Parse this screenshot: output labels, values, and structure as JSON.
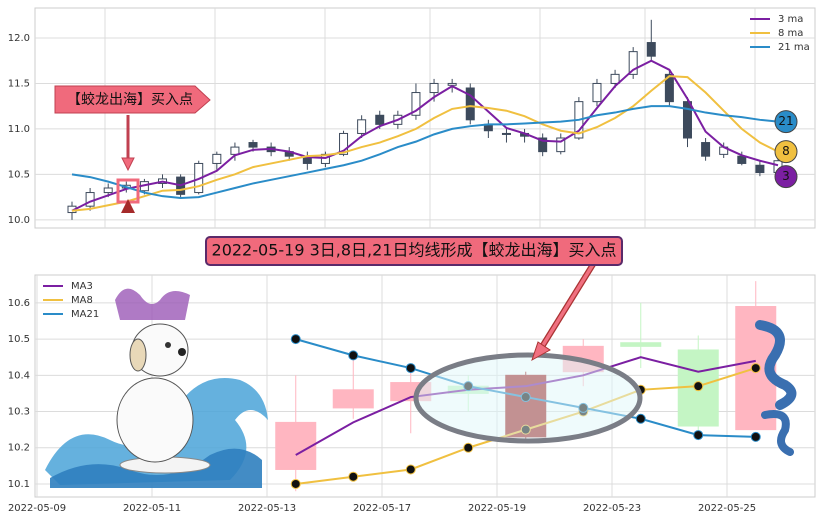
{
  "chart_data": [
    {
      "type": "candlestick",
      "ylim": [
        9.91,
        12.33
      ],
      "yticks": [
        {
          "value": 10,
          "label": "10.0"
        },
        10.5,
        {
          "value": 11,
          "label": "11.0"
        },
        11.5,
        {
          "value": 12,
          "label": "12.0"
        }
      ],
      "grid": true,
      "legend": "upper right",
      "up_color": "#ffffff",
      "down_color": "#3d4a5c",
      "annotation": "【蛟龙出海】买入点",
      "open": [
        10.08,
        10.15,
        10.3,
        10.35,
        10.32,
        10.4,
        10.47,
        10.3,
        10.62,
        10.72,
        10.85,
        10.8,
        10.75,
        10.7,
        10.62,
        10.72,
        10.95,
        11.15,
        11.05,
        11.15,
        11.4,
        11.48,
        11.45,
        11.05,
        10.95,
        10.95,
        10.9,
        10.75,
        10.9,
        11.3,
        11.5,
        11.6,
        11.95,
        11.6,
        11.3,
        10.85,
        10.72,
        10.7,
        10.6,
        10.52
      ],
      "high": [
        10.2,
        10.35,
        10.4,
        10.42,
        10.45,
        10.5,
        10.5,
        10.65,
        10.75,
        10.85,
        10.88,
        10.85,
        10.8,
        10.75,
        10.75,
        10.98,
        11.15,
        11.2,
        11.2,
        11.5,
        11.55,
        11.55,
        11.5,
        11.1,
        11.0,
        11.0,
        10.95,
        10.95,
        11.35,
        11.55,
        11.65,
        11.9,
        12.2,
        11.65,
        11.35,
        10.9,
        10.85,
        10.75,
        10.65,
        10.72
      ],
      "low": [
        10.0,
        10.1,
        10.25,
        10.3,
        10.28,
        10.35,
        10.25,
        10.28,
        10.55,
        10.65,
        10.75,
        10.7,
        10.65,
        10.55,
        10.58,
        10.7,
        10.9,
        11.0,
        11.0,
        11.1,
        11.3,
        11.4,
        11.05,
        10.9,
        10.85,
        10.85,
        10.7,
        10.72,
        10.88,
        11.25,
        11.45,
        11.55,
        11.75,
        11.25,
        10.8,
        10.65,
        10.68,
        10.6,
        10.48,
        10.5
      ],
      "close": [
        10.15,
        10.3,
        10.35,
        10.38,
        10.42,
        10.45,
        10.28,
        10.62,
        10.72,
        10.8,
        10.8,
        10.75,
        10.7,
        10.62,
        10.72,
        10.95,
        11.1,
        11.05,
        11.15,
        11.4,
        11.5,
        11.5,
        11.1,
        10.98,
        10.95,
        10.92,
        10.75,
        10.9,
        11.3,
        11.5,
        11.6,
        11.85,
        11.8,
        11.3,
        10.9,
        10.7,
        10.8,
        10.62,
        10.52,
        10.65
      ],
      "series": [
        {
          "name": "3 ma",
          "badge": "3",
          "color": "#7b1fa2",
          "values": [
            10.1,
            10.2,
            10.27,
            10.34,
            10.38,
            10.42,
            10.38,
            10.45,
            10.54,
            10.71,
            10.77,
            10.78,
            10.75,
            10.69,
            10.68,
            10.76,
            10.92,
            11.03,
            11.1,
            11.2,
            11.35,
            11.47,
            11.37,
            11.19,
            11.01,
            10.95,
            10.87,
            10.86,
            10.98,
            11.23,
            11.47,
            11.65,
            11.75,
            11.65,
            11.33,
            10.97,
            10.8,
            10.71,
            10.65,
            10.6
          ]
        },
        {
          "name": "8 ma",
          "badge": "8",
          "color": "#f0c040",
          "values": [
            10.1,
            10.12,
            10.16,
            10.2,
            10.26,
            10.32,
            10.33,
            10.37,
            10.44,
            10.5,
            10.58,
            10.62,
            10.66,
            10.7,
            10.71,
            10.74,
            10.8,
            10.85,
            10.92,
            11.0,
            11.12,
            11.22,
            11.25,
            11.23,
            11.2,
            11.14,
            11.05,
            10.98,
            10.95,
            11.02,
            11.12,
            11.25,
            11.42,
            11.58,
            11.57,
            11.4,
            11.2,
            11.0,
            10.85,
            10.75
          ]
        },
        {
          "name": "21 ma",
          "badge": "21",
          "color": "#2a8cc8",
          "values": [
            10.5,
            10.47,
            10.42,
            10.36,
            10.3,
            10.26,
            10.24,
            10.25,
            10.3,
            10.35,
            10.4,
            10.44,
            10.48,
            10.52,
            10.56,
            10.6,
            10.65,
            10.72,
            10.8,
            10.86,
            10.94,
            11.0,
            11.03,
            11.05,
            11.05,
            11.06,
            11.07,
            11.08,
            11.1,
            11.15,
            11.18,
            11.22,
            11.25,
            11.25,
            11.22,
            11.18,
            11.15,
            11.13,
            11.1,
            11.08
          ]
        }
      ]
    },
    {
      "type": "candlestick",
      "title": "2022-05-19 3日,8日,21日均线形成【蛟龙出海】买入点",
      "categories": [
        "2022-05-09",
        null,
        "2022-05-11",
        null,
        "2022-05-13",
        null,
        "2022-05-17",
        null,
        "2022-05-19",
        null,
        "2022-05-23",
        null,
        "2022-05-25",
        null
      ],
      "ylim": [
        10.064,
        10.677
      ],
      "yticks": [
        10.1,
        10.2,
        10.3,
        10.4,
        10.5,
        10.6
      ],
      "grid": true,
      "legend": "upper left",
      "open": [
        null,
        null,
        null,
        null,
        10.14,
        10.31,
        10.33,
        10.37,
        10.23,
        10.41,
        10.49,
        10.47,
        10.25,
        null
      ],
      "high": [
        null,
        null,
        null,
        null,
        10.4,
        10.45,
        10.41,
        10.4,
        10.41,
        10.5,
        10.6,
        10.51,
        10.66,
        null
      ],
      "low": [
        null,
        null,
        null,
        null,
        10.08,
        10.28,
        10.24,
        10.3,
        10.22,
        10.37,
        10.42,
        10.24,
        10.25,
        null
      ],
      "close": [
        null,
        null,
        null,
        null,
        10.27,
        10.36,
        10.38,
        10.35,
        10.4,
        10.48,
        10.48,
        10.26,
        10.59,
        null
      ],
      "colors": [
        null,
        null,
        null,
        null,
        "#ffb6c1",
        "#ffb6c1",
        "#ffb6c1",
        "#c4f5c4",
        "#a52a2a",
        "#ffb6c1",
        "#c4f5c4",
        "#c4f5c4",
        "#ffb6c1",
        null
      ],
      "series": [
        {
          "name": "MA3",
          "color": "#7b1fa2",
          "markers": false,
          "values": [
            null,
            null,
            null,
            null,
            10.18,
            10.27,
            10.34,
            10.36,
            10.37,
            10.4,
            10.45,
            10.41,
            10.44,
            null
          ]
        },
        {
          "name": "MA8",
          "color": "#f0c040",
          "markers": true,
          "values": [
            null,
            null,
            null,
            null,
            10.1,
            10.12,
            10.14,
            10.2,
            10.25,
            10.3,
            10.36,
            10.37,
            10.42,
            null
          ]
        },
        {
          "name": "MA21",
          "color": "#2a8cc8",
          "markers": true,
          "values": [
            null,
            null,
            null,
            null,
            10.5,
            10.455,
            10.42,
            10.37,
            10.34,
            10.31,
            10.28,
            10.235,
            10.23,
            null
          ]
        }
      ]
    }
  ]
}
